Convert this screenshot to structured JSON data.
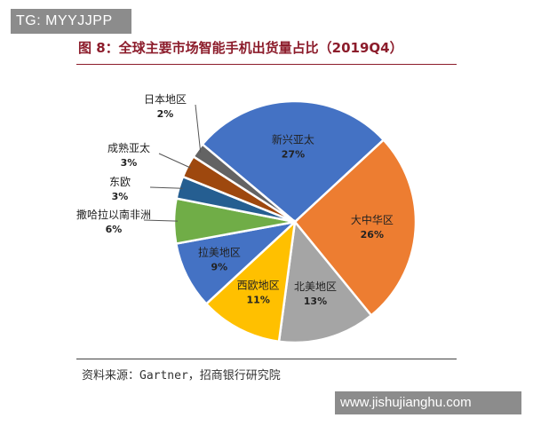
{
  "badge": "TG: MYYJJPP",
  "source": "资料来源：Gartner，招商银行研究院",
  "watermark": "www.jishujianghu.com",
  "chart_data": {
    "type": "pie",
    "title": "图 8：全球主要市场智能手机出货量占比（2019Q4）",
    "slices": [
      {
        "label": "新兴亚太",
        "value": 27,
        "value_label": "27%",
        "color": "#4472c4"
      },
      {
        "label": "大中华区",
        "value": 26,
        "value_label": "26%",
        "color": "#ed7d31"
      },
      {
        "label": "北美地区",
        "value": 13,
        "value_label": "13%",
        "color": "#a5a5a5"
      },
      {
        "label": "西欧地区",
        "value": 11,
        "value_label": "11%",
        "color": "#ffc000"
      },
      {
        "label": "拉美地区",
        "value": 9,
        "value_label": "9%",
        "color": "#4472c4"
      },
      {
        "label": "撒哈拉以南非洲",
        "value": 6,
        "value_label": "6%",
        "color": "#70ad47"
      },
      {
        "label": "东欧",
        "value": 3,
        "value_label": "3%",
        "color": "#255e91"
      },
      {
        "label": "成熟亚太",
        "value": 3,
        "value_label": "3%",
        "color": "#9e480e"
      },
      {
        "label": "日本地区",
        "value": 2,
        "value_label": "2%",
        "color": "#636363"
      }
    ]
  }
}
